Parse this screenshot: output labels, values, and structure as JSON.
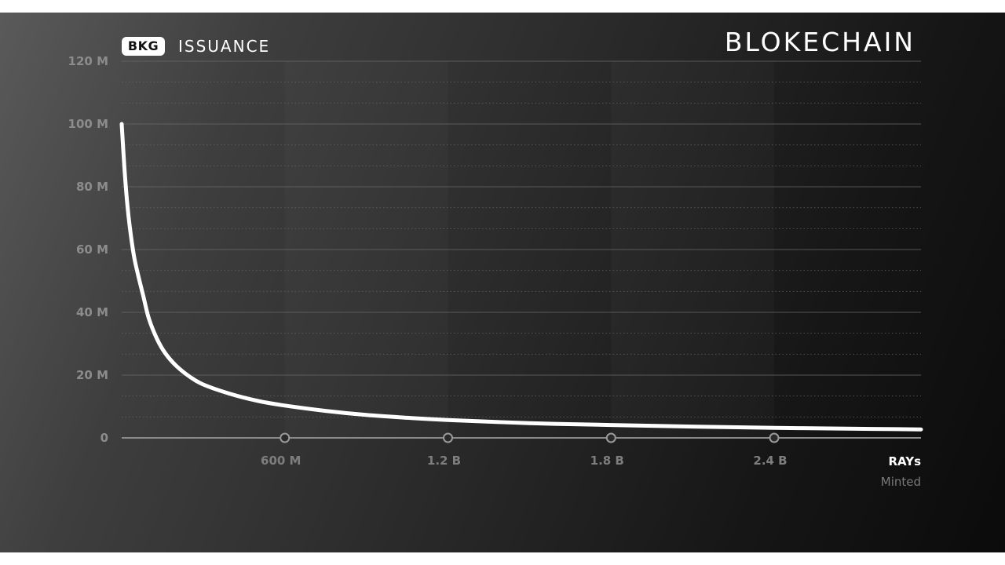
{
  "header": {
    "badge": "BKG",
    "title": "ISSUANCE",
    "brand": "BLOKECHAIN"
  },
  "colors": {
    "curve": "#ffffff",
    "grid": "#6a6a6a",
    "tick_label": "#8c8c8c",
    "x_unit": "#ffffff",
    "x_sub": "#7a7a7a"
  },
  "chart_data": {
    "type": "line",
    "title": "ISSUANCE",
    "xlabel": "RAYs",
    "xlabel_sub": "Minted",
    "ylabel": "",
    "xlim": [
      0,
      2.94
    ],
    "ylim": [
      0,
      120
    ],
    "x_ticks": [
      {
        "value": 0.6,
        "label": "600 M"
      },
      {
        "value": 1.2,
        "label": "1.2 B"
      },
      {
        "value": 1.8,
        "label": "1.8 B"
      },
      {
        "value": 2.4,
        "label": "2.4 B"
      }
    ],
    "y_ticks": [
      {
        "value": 0,
        "label": "0"
      },
      {
        "value": 20,
        "label": "20 M"
      },
      {
        "value": 40,
        "label": "40 M"
      },
      {
        "value": 60,
        "label": "60 M"
      },
      {
        "value": 80,
        "label": "80 M"
      },
      {
        "value": 100,
        "label": "100 M"
      },
      {
        "value": 120,
        "label": "120 M"
      }
    ],
    "grid": true,
    "series": [
      {
        "name": "",
        "x": [
          0,
          0.01,
          0.02,
          0.03,
          0.045,
          0.06,
          0.08,
          0.1,
          0.13,
          0.16,
          0.2,
          0.25,
          0.3,
          0.4,
          0.5,
          0.6,
          0.75,
          0.9,
          1.05,
          1.2,
          1.5,
          1.8,
          2.1,
          2.4,
          2.7,
          2.94
        ],
        "y": [
          100,
          86,
          75,
          67,
          58,
          52,
          45,
          38,
          31.5,
          27,
          23,
          19.5,
          17,
          14,
          11.8,
          10.3,
          8.6,
          7.3,
          6.4,
          5.7,
          4.7,
          4.1,
          3.6,
          3.2,
          2.9,
          2.7
        ]
      }
    ]
  }
}
